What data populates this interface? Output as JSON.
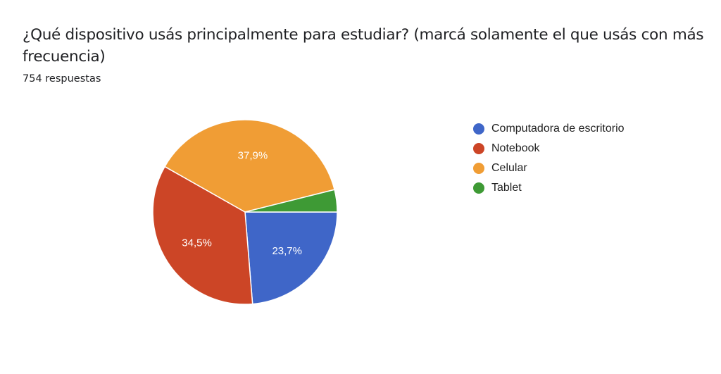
{
  "question": {
    "title": "¿Qué dispositivo usás principalmente para estudiar? (marcá solamente el que usás con más frecuencia)",
    "response_count": "754 respuestas"
  },
  "chart_data": {
    "type": "pie",
    "title": "¿Qué dispositivo usás principalmente para estudiar? (marcá solamente el que usás con más frecuencia)",
    "subtitle": "754 respuestas",
    "categories": [
      "Computadora de escritorio",
      "Notebook",
      "Celular",
      "Tablet"
    ],
    "values": [
      23.7,
      34.5,
      37.9,
      3.9
    ],
    "labels": [
      "23,7%",
      "34,5%",
      "37,9%",
      ""
    ],
    "colors": [
      "#3f66c8",
      "#cc4526",
      "#f09d35",
      "#3e9a35"
    ],
    "legend_position": "right",
    "start_angle": "3 o'clock, clockwise"
  },
  "legend": {
    "items": [
      {
        "label": "Computadora de escritorio",
        "color": "#3f66c8"
      },
      {
        "label": "Notebook",
        "color": "#cc4526"
      },
      {
        "label": "Celular",
        "color": "#f09d35"
      },
      {
        "label": "Tablet",
        "color": "#3e9a35"
      }
    ]
  }
}
